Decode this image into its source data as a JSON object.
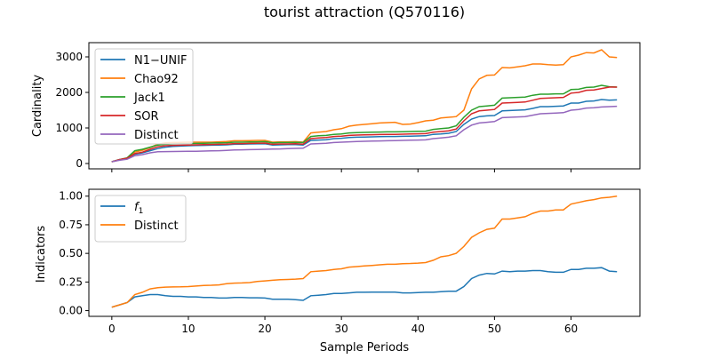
{
  "chart_data": [
    {
      "type": "line",
      "title": "tourist attraction (Q570116)",
      "xlabel": "",
      "ylabel": "Cardinality",
      "xlim": [
        -3,
        69
      ],
      "ylim": [
        -150,
        3400
      ],
      "xticks": [
        0,
        10,
        20,
        30,
        40,
        50,
        60
      ],
      "yticks": [
        0,
        1000,
        2000,
        3000
      ],
      "grid": false,
      "legend": "top-left",
      "x": [
        0,
        1,
        2,
        3,
        4,
        5,
        6,
        7,
        8,
        9,
        10,
        11,
        12,
        13,
        14,
        15,
        16,
        17,
        18,
        19,
        20,
        21,
        22,
        23,
        24,
        25,
        26,
        27,
        28,
        29,
        30,
        31,
        32,
        33,
        34,
        35,
        36,
        37,
        38,
        39,
        40,
        41,
        42,
        43,
        44,
        45,
        46,
        47,
        48,
        49,
        50,
        51,
        52,
        53,
        54,
        55,
        56,
        57,
        58,
        59,
        60,
        61,
        62,
        63,
        64,
        65,
        66
      ],
      "series": [
        {
          "name": "N1−UNIF",
          "color": "#1f77b4",
          "values": [
            50,
            110,
            150,
            260,
            300,
            360,
            420,
            460,
            480,
            490,
            500,
            505,
            510,
            515,
            520,
            525,
            540,
            545,
            550,
            552,
            555,
            520,
            525,
            530,
            530,
            520,
            650,
            660,
            670,
            700,
            710,
            730,
            740,
            745,
            750,
            755,
            760,
            760,
            765,
            770,
            775,
            780,
            820,
            830,
            850,
            900,
            1100,
            1250,
            1320,
            1340,
            1350,
            1480,
            1490,
            1500,
            1510,
            1550,
            1600,
            1600,
            1610,
            1620,
            1700,
            1700,
            1750,
            1760,
            1800,
            1780,
            1790
          ]
        },
        {
          "name": "Chao92",
          "color": "#ff7f0e",
          "values": [
            50,
            100,
            150,
            320,
            370,
            450,
            540,
            580,
            590,
            595,
            600,
            600,
            600,
            600,
            610,
            620,
            640,
            640,
            645,
            650,
            650,
            600,
            610,
            610,
            615,
            600,
            860,
            880,
            900,
            950,
            980,
            1050,
            1080,
            1100,
            1120,
            1140,
            1150,
            1160,
            1100,
            1110,
            1150,
            1200,
            1220,
            1280,
            1300,
            1320,
            1500,
            2100,
            2380,
            2480,
            2490,
            2700,
            2690,
            2720,
            2750,
            2800,
            2800,
            2780,
            2770,
            2780,
            3000,
            3050,
            3120,
            3110,
            3200,
            3000,
            2980
          ]
        },
        {
          "name": "Jack1",
          "color": "#2ca02c",
          "values": [
            50,
            110,
            160,
            360,
            400,
            460,
            520,
            540,
            550,
            555,
            560,
            565,
            570,
            575,
            580,
            585,
            600,
            600,
            605,
            610,
            615,
            580,
            590,
            590,
            595,
            590,
            760,
            780,
            790,
            820,
            830,
            860,
            870,
            875,
            880,
            885,
            890,
            890,
            895,
            900,
            905,
            910,
            960,
            980,
            1000,
            1060,
            1300,
            1500,
            1600,
            1620,
            1640,
            1840,
            1850,
            1860,
            1870,
            1920,
            1950,
            1950,
            1960,
            1960,
            2080,
            2090,
            2140,
            2150,
            2200,
            2160,
            2150
          ]
        },
        {
          "name": "SOR",
          "color": "#d62728",
          "values": [
            50,
            110,
            150,
            280,
            320,
            400,
            470,
            500,
            510,
            515,
            520,
            525,
            530,
            535,
            540,
            545,
            560,
            560,
            565,
            570,
            575,
            540,
            550,
            550,
            555,
            545,
            700,
            720,
            730,
            760,
            770,
            790,
            800,
            805,
            810,
            815,
            820,
            820,
            825,
            830,
            835,
            840,
            880,
            900,
            920,
            970,
            1200,
            1400,
            1480,
            1500,
            1520,
            1700,
            1710,
            1720,
            1730,
            1780,
            1830,
            1840,
            1850,
            1860,
            1980,
            2000,
            2060,
            2070,
            2110,
            2150,
            2150
          ]
        },
        {
          "name": "Distinct",
          "color": "#9467bd",
          "values": [
            50,
            90,
            120,
            220,
            250,
            300,
            330,
            335,
            338,
            340,
            342,
            345,
            350,
            355,
            360,
            370,
            380,
            385,
            390,
            395,
            400,
            405,
            410,
            420,
            425,
            430,
            550,
            560,
            570,
            590,
            600,
            610,
            620,
            625,
            630,
            635,
            640,
            645,
            650,
            655,
            660,
            665,
            700,
            720,
            740,
            780,
            950,
            1080,
            1140,
            1160,
            1180,
            1290,
            1300,
            1310,
            1320,
            1360,
            1400,
            1410,
            1420,
            1430,
            1500,
            1520,
            1560,
            1570,
            1590,
            1600,
            1610
          ]
        }
      ]
    },
    {
      "type": "line",
      "xlabel": "Sample Periods",
      "ylabel": "Indicators",
      "xlim": [
        -3,
        69
      ],
      "ylim": [
        -0.05,
        1.06
      ],
      "xticks": [
        0,
        10,
        20,
        30,
        40,
        50,
        60
      ],
      "yticks": [
        "0.00",
        "0.25",
        "0.50",
        "0.75",
        "1.00"
      ],
      "grid": false,
      "legend": "top-left",
      "x": [
        0,
        1,
        2,
        3,
        4,
        5,
        6,
        7,
        8,
        9,
        10,
        11,
        12,
        13,
        14,
        15,
        16,
        17,
        18,
        19,
        20,
        21,
        22,
        23,
        24,
        25,
        26,
        27,
        28,
        29,
        30,
        31,
        32,
        33,
        34,
        35,
        36,
        37,
        38,
        39,
        40,
        41,
        42,
        43,
        44,
        45,
        46,
        47,
        48,
        49,
        50,
        51,
        52,
        53,
        54,
        55,
        56,
        57,
        58,
        59,
        60,
        61,
        62,
        63,
        64,
        65,
        66
      ],
      "series": [
        {
          "name": "f_1",
          "name_main": "f",
          "name_sub": "1",
          "color": "#1f77b4",
          "values": [
            0.03,
            0.05,
            0.07,
            0.12,
            0.13,
            0.14,
            0.14,
            0.13,
            0.125,
            0.125,
            0.12,
            0.12,
            0.115,
            0.115,
            0.11,
            0.11,
            0.115,
            0.115,
            0.112,
            0.112,
            0.11,
            0.1,
            0.1,
            0.1,
            0.095,
            0.09,
            0.13,
            0.135,
            0.14,
            0.15,
            0.15,
            0.155,
            0.16,
            0.16,
            0.162,
            0.162,
            0.162,
            0.162,
            0.155,
            0.155,
            0.158,
            0.16,
            0.16,
            0.165,
            0.17,
            0.17,
            0.21,
            0.28,
            0.31,
            0.325,
            0.32,
            0.345,
            0.34,
            0.345,
            0.345,
            0.35,
            0.35,
            0.34,
            0.335,
            0.335,
            0.36,
            0.36,
            0.37,
            0.37,
            0.375,
            0.345,
            0.34
          ]
        },
        {
          "name": "Distinct",
          "color": "#ff7f0e",
          "values": [
            0.03,
            0.05,
            0.07,
            0.14,
            0.16,
            0.19,
            0.2,
            0.205,
            0.207,
            0.208,
            0.21,
            0.215,
            0.22,
            0.222,
            0.225,
            0.235,
            0.24,
            0.242,
            0.245,
            0.255,
            0.26,
            0.265,
            0.27,
            0.272,
            0.275,
            0.28,
            0.34,
            0.345,
            0.35,
            0.36,
            0.365,
            0.38,
            0.385,
            0.39,
            0.395,
            0.4,
            0.405,
            0.405,
            0.41,
            0.412,
            0.415,
            0.42,
            0.44,
            0.47,
            0.48,
            0.5,
            0.56,
            0.64,
            0.68,
            0.71,
            0.72,
            0.8,
            0.8,
            0.81,
            0.82,
            0.85,
            0.87,
            0.87,
            0.88,
            0.88,
            0.93,
            0.945,
            0.96,
            0.97,
            0.985,
            0.99,
            1.0
          ]
        }
      ]
    }
  ]
}
